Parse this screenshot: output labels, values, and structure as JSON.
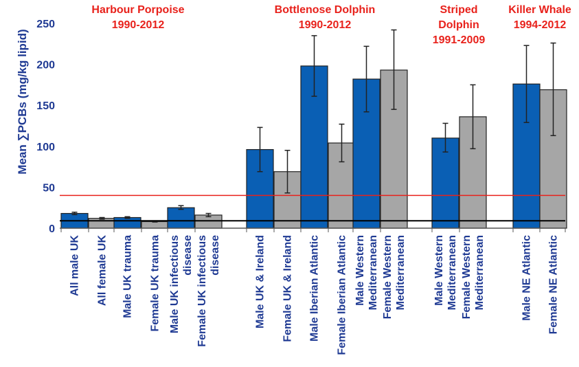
{
  "chart_data": {
    "type": "bar",
    "ylabel": "Mean ∑PCBs (mg/kg lipid)",
    "ylim": [
      0,
      260
    ],
    "yticks": [
      0,
      50,
      100,
      150,
      200,
      250
    ],
    "reference_line": {
      "value": 40,
      "color": "#e8211b"
    },
    "baseline_line": {
      "value": 9,
      "color": "#000000"
    },
    "colors": {
      "male": "#0a5fb4",
      "female": "#a6a6a6",
      "accent": "#e8211b",
      "axis_text": "#1f3a93"
    },
    "groups": [
      {
        "title": [
          "Harbour Porpoise",
          "1990-2012"
        ]
      },
      {
        "title": [
          "Bottlenose Dolphin",
          "1990-2012"
        ]
      },
      {
        "title": [
          "Striped",
          "Dolphin",
          "1991-2009"
        ]
      },
      {
        "title": [
          "Killer Whale",
          "1994-2012"
        ]
      }
    ],
    "bars": [
      {
        "group": 0,
        "label": [
          "All male UK"
        ],
        "value": 18,
        "err": [
          16.5,
          19.5
        ],
        "sex": "male"
      },
      {
        "group": 0,
        "label": [
          "All female UK"
        ],
        "value": 12,
        "err": [
          11,
          13
        ],
        "sex": "female"
      },
      {
        "group": 0,
        "label": [
          "Male UK trauma"
        ],
        "value": 13,
        "err": [
          12,
          14
        ],
        "sex": "male"
      },
      {
        "group": 0,
        "label": [
          "Female UK trauma"
        ],
        "value": 8,
        "err": [
          7.5,
          8.5
        ],
        "sex": "female"
      },
      {
        "group": 0,
        "label": [
          "Male UK infectious",
          "disease"
        ],
        "value": 25,
        "err": [
          23,
          27.5
        ],
        "sex": "male"
      },
      {
        "group": 0,
        "label": [
          "Female UK infectious",
          "disease"
        ],
        "value": 16,
        "err": [
          14,
          18
        ],
        "sex": "female"
      },
      {
        "group": 1,
        "label": [
          "Male UK & Ireland"
        ],
        "value": 96,
        "err": [
          69,
          123
        ],
        "sex": "male"
      },
      {
        "group": 1,
        "label": [
          "Female UK & Ireland"
        ],
        "value": 69,
        "err": [
          43,
          95
        ],
        "sex": "female"
      },
      {
        "group": 1,
        "label": [
          "Male Iberian Atlantic"
        ],
        "value": 198,
        "err": [
          161,
          235
        ],
        "sex": "male"
      },
      {
        "group": 1,
        "label": [
          "Female Iberian Atlantic"
        ],
        "value": 104,
        "err": [
          81,
          127
        ],
        "sex": "female"
      },
      {
        "group": 1,
        "label": [
          "Male Western",
          "Mediterranean"
        ],
        "value": 182,
        "err": [
          142,
          222
        ],
        "sex": "male"
      },
      {
        "group": 1,
        "label": [
          "Female Western",
          "Mediterranean"
        ],
        "value": 193,
        "err": [
          145,
          242
        ],
        "sex": "female"
      },
      {
        "group": 2,
        "label": [
          "Male Western",
          "Mediterranean"
        ],
        "value": 110,
        "err": [
          93,
          128
        ],
        "sex": "male"
      },
      {
        "group": 2,
        "label": [
          "Female Western",
          "Mediterranean"
        ],
        "value": 136,
        "err": [
          97,
          175
        ],
        "sex": "female"
      },
      {
        "group": 3,
        "label": [
          "Male NE Atlantic"
        ],
        "value": 176,
        "err": [
          129,
          223
        ],
        "sex": "male"
      },
      {
        "group": 3,
        "label": [
          "Female NE Atlantic"
        ],
        "value": 169,
        "err": [
          113,
          226
        ],
        "sex": "female"
      }
    ]
  }
}
